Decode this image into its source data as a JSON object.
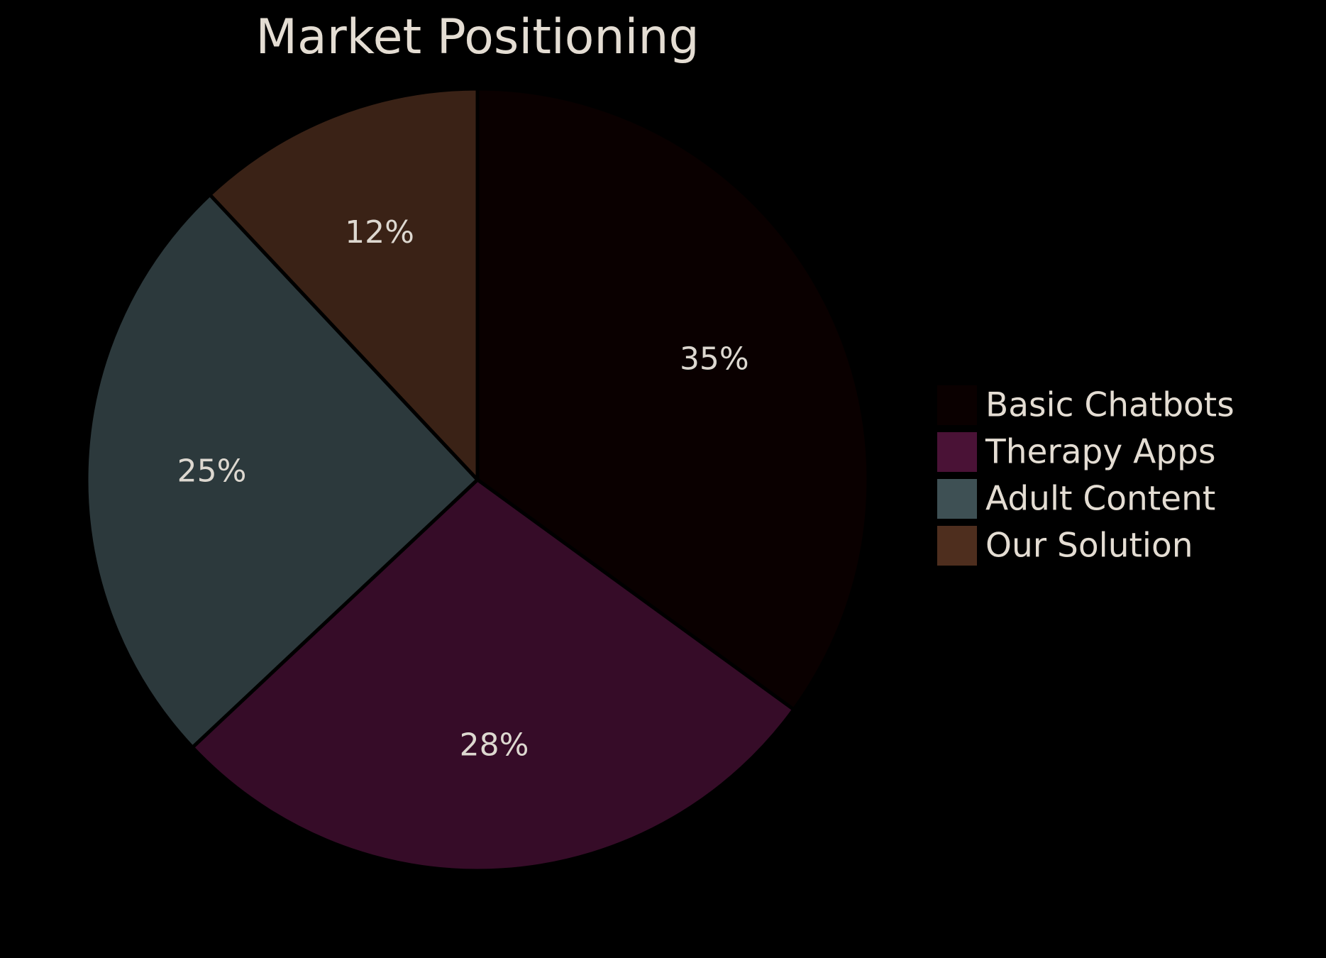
{
  "chart_data": {
    "type": "pie",
    "title": "Market Positioning",
    "categories": [
      "Basic Chatbots",
      "Therapy Apps",
      "Adult Content",
      "Our Solution"
    ],
    "values": [
      35,
      28,
      25,
      12
    ],
    "labels": [
      "35%",
      "28%",
      "25%",
      "12%"
    ],
    "colors": [
      "#0a0000",
      "#360c28",
      "#2c393c",
      "#3a2216"
    ],
    "legend_colors": [
      "#0a0000",
      "#4a1236",
      "#3e5054",
      "#4e2e1e"
    ],
    "start_angle": "top",
    "direction": "clockwise",
    "legend_position": "right"
  }
}
